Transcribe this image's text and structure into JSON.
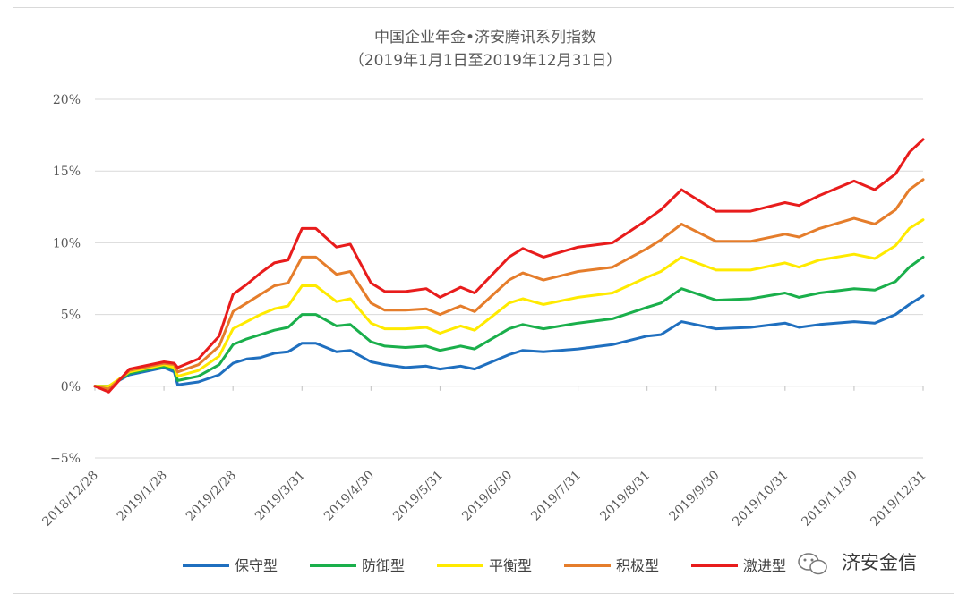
{
  "chart_data": {
    "type": "line",
    "title": "中国企业年金•济安腾讯系列指数",
    "subtitle": "（2019年1月1日至2019年12月31日）",
    "xlabel": "",
    "ylabel": "",
    "ylim": [
      -5,
      20
    ],
    "y_ticks": [
      -5,
      0,
      5,
      10,
      15,
      20
    ],
    "y_tick_labels": [
      "−5%",
      "0%",
      "5%",
      "10%",
      "15%",
      "20%"
    ],
    "x_tick_labels": [
      "2018/12/28",
      "2019/1/28",
      "2019/2/28",
      "2019/3/31",
      "2019/4/30",
      "2019/5/31",
      "2019/6/30",
      "2019/7/31",
      "2019/8/31",
      "2019/9/30",
      "2019/10/31",
      "2019/11/30",
      "2019/12/31"
    ],
    "grid": true,
    "legend_position": "bottom",
    "x_unit": "month index (0 = 2018/12/28, 12 = 2019/12/31)",
    "series": [
      {
        "name": "保守型",
        "color": "#1f6fbf",
        "x": [
          0,
          0.2,
          0.5,
          1.0,
          1.15,
          1.2,
          1.5,
          1.8,
          2.0,
          2.2,
          2.4,
          2.6,
          2.8,
          3.0,
          3.2,
          3.5,
          3.7,
          4.0,
          4.2,
          4.5,
          4.8,
          5.0,
          5.3,
          5.5,
          6.0,
          6.2,
          6.5,
          7.0,
          7.5,
          8.0,
          8.2,
          8.5,
          9.0,
          9.5,
          10.0,
          10.2,
          10.5,
          11.0,
          11.3,
          11.6,
          11.8,
          12.0
        ],
        "values": [
          0,
          0,
          0.8,
          1.3,
          1.0,
          0.1,
          0.3,
          0.8,
          1.6,
          1.9,
          2.0,
          2.3,
          2.4,
          3.0,
          3.0,
          2.4,
          2.5,
          1.7,
          1.5,
          1.3,
          1.4,
          1.2,
          1.4,
          1.2,
          2.2,
          2.5,
          2.4,
          2.6,
          2.9,
          3.5,
          3.6,
          4.5,
          4.0,
          4.1,
          4.4,
          4.1,
          4.3,
          4.5,
          4.4,
          5.0,
          5.7,
          6.3
        ]
      },
      {
        "name": "防御型",
        "color": "#1aaf4b",
        "x": [
          0,
          0.2,
          0.5,
          1.0,
          1.15,
          1.2,
          1.5,
          1.8,
          2.0,
          2.2,
          2.4,
          2.6,
          2.8,
          3.0,
          3.2,
          3.5,
          3.7,
          4.0,
          4.2,
          4.5,
          4.8,
          5.0,
          5.3,
          5.5,
          6.0,
          6.2,
          6.5,
          7.0,
          7.5,
          8.0,
          8.2,
          8.5,
          9.0,
          9.5,
          10.0,
          10.2,
          10.5,
          11.0,
          11.3,
          11.6,
          11.8,
          12.0
        ],
        "values": [
          0,
          0,
          0.9,
          1.4,
          1.2,
          0.4,
          0.7,
          1.5,
          2.9,
          3.3,
          3.6,
          3.9,
          4.1,
          5.0,
          5.0,
          4.2,
          4.3,
          3.1,
          2.8,
          2.7,
          2.8,
          2.5,
          2.8,
          2.6,
          4.0,
          4.3,
          4.0,
          4.4,
          4.7,
          5.5,
          5.8,
          6.8,
          6.0,
          6.1,
          6.5,
          6.2,
          6.5,
          6.8,
          6.7,
          7.3,
          8.3,
          9.0
        ]
      },
      {
        "name": "平衡型",
        "color": "#ffea00",
        "x": [
          0,
          0.2,
          0.5,
          1.0,
          1.15,
          1.2,
          1.5,
          1.8,
          2.0,
          2.2,
          2.4,
          2.6,
          2.8,
          3.0,
          3.2,
          3.5,
          3.7,
          4.0,
          4.2,
          4.5,
          4.8,
          5.0,
          5.3,
          5.5,
          6.0,
          6.2,
          6.5,
          7.0,
          7.5,
          8.0,
          8.2,
          8.5,
          9.0,
          9.5,
          10.0,
          10.2,
          10.5,
          11.0,
          11.3,
          11.6,
          11.8,
          12.0
        ],
        "values": [
          0,
          0,
          1.0,
          1.5,
          1.3,
          0.7,
          1.1,
          2.1,
          4.0,
          4.5,
          5.0,
          5.4,
          5.6,
          7.0,
          7.0,
          5.9,
          6.1,
          4.4,
          4.0,
          4.0,
          4.1,
          3.7,
          4.2,
          3.9,
          5.8,
          6.1,
          5.7,
          6.2,
          6.5,
          7.6,
          8.0,
          9.0,
          8.1,
          8.1,
          8.6,
          8.3,
          8.8,
          9.2,
          8.9,
          9.8,
          11.0,
          11.6
        ]
      },
      {
        "name": "积极型",
        "color": "#e57d2b",
        "x": [
          0,
          0.2,
          0.5,
          1.0,
          1.15,
          1.2,
          1.5,
          1.8,
          2.0,
          2.2,
          2.4,
          2.6,
          2.8,
          3.0,
          3.2,
          3.5,
          3.7,
          4.0,
          4.2,
          4.5,
          4.8,
          5.0,
          5.3,
          5.5,
          6.0,
          6.2,
          6.5,
          7.0,
          7.5,
          8.0,
          8.2,
          8.5,
          9.0,
          9.5,
          10.0,
          10.2,
          10.5,
          11.0,
          11.3,
          11.6,
          11.8,
          12.0
        ],
        "values": [
          0,
          -0.2,
          1.1,
          1.6,
          1.5,
          1.0,
          1.5,
          2.8,
          5.2,
          5.8,
          6.4,
          7.0,
          7.2,
          9.0,
          9.0,
          7.8,
          8.0,
          5.8,
          5.3,
          5.3,
          5.4,
          5.0,
          5.6,
          5.2,
          7.4,
          7.9,
          7.4,
          8.0,
          8.3,
          9.6,
          10.2,
          11.3,
          10.1,
          10.1,
          10.6,
          10.4,
          11.0,
          11.7,
          11.3,
          12.3,
          13.7,
          14.4
        ]
      },
      {
        "name": "激进型",
        "color": "#e81c1c",
        "x": [
          0,
          0.2,
          0.5,
          1.0,
          1.15,
          1.2,
          1.5,
          1.8,
          2.0,
          2.2,
          2.4,
          2.6,
          2.8,
          3.0,
          3.2,
          3.5,
          3.7,
          4.0,
          4.2,
          4.5,
          4.8,
          5.0,
          5.3,
          5.5,
          6.0,
          6.2,
          6.5,
          7.0,
          7.5,
          8.0,
          8.2,
          8.5,
          9.0,
          9.5,
          10.0,
          10.2,
          10.5,
          11.0,
          11.3,
          11.6,
          11.8,
          12.0
        ],
        "values": [
          0,
          -0.4,
          1.2,
          1.7,
          1.6,
          1.3,
          1.9,
          3.5,
          6.4,
          7.1,
          7.9,
          8.6,
          8.8,
          11.0,
          11.0,
          9.7,
          9.9,
          7.2,
          6.6,
          6.6,
          6.8,
          6.2,
          6.9,
          6.5,
          9.0,
          9.6,
          9.0,
          9.7,
          10.0,
          11.6,
          12.3,
          13.7,
          12.2,
          12.2,
          12.8,
          12.6,
          13.3,
          14.3,
          13.7,
          14.8,
          16.3,
          17.2
        ]
      }
    ]
  },
  "watermark": {
    "text": "济安金信",
    "icon": "wechat-icon"
  }
}
